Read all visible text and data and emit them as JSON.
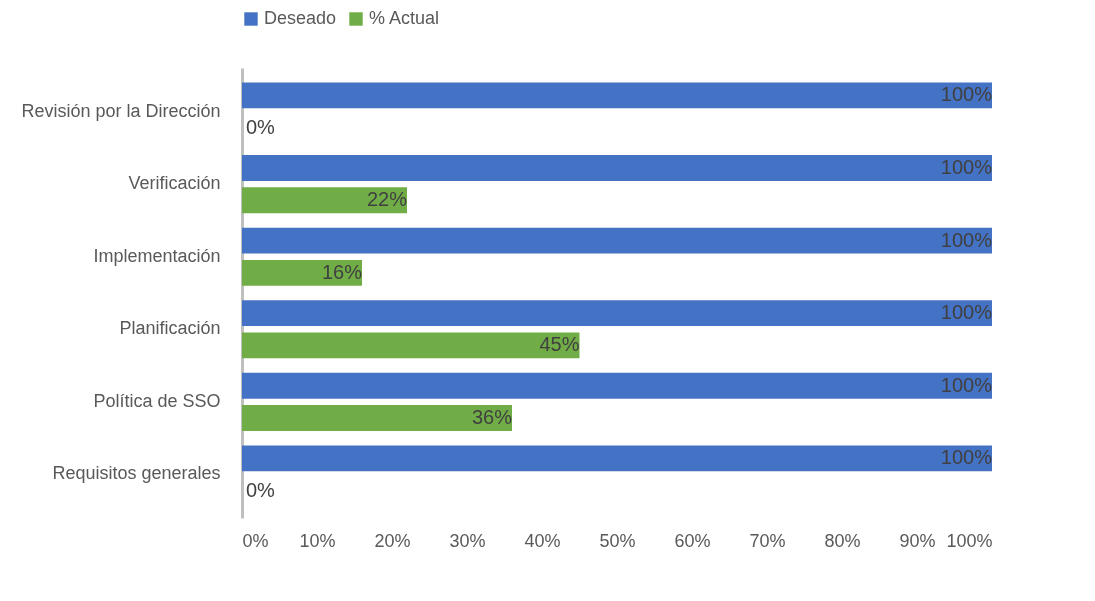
{
  "chart_data": {
    "type": "bar",
    "orientation": "horizontal",
    "legend": "top",
    "grid": false,
    "categories": [
      "Revisión por la Dirección",
      "Verificación",
      "Implementación",
      "Planificación",
      "Política de SSO",
      "Requisitos generales"
    ],
    "series": [
      {
        "name": "Deseado",
        "color": "#4472c4",
        "values": [
          100,
          100,
          100,
          100,
          100,
          100
        ],
        "value_labels": [
          "100%",
          "100%",
          "100%",
          "100%",
          "100%",
          "100%"
        ]
      },
      {
        "name": "% Actual",
        "color": "#70ad47",
        "values": [
          0,
          22,
          16,
          45,
          36,
          0
        ],
        "value_labels": [
          "0%",
          "22%",
          "16%",
          "45%",
          "36%",
          "0%"
        ]
      }
    ],
    "xlim": [
      0,
      100
    ],
    "xticks": [
      {
        "value": 0,
        "label": "0%"
      },
      {
        "value": 10,
        "label": "10%"
      },
      {
        "value": 20,
        "label": "20%"
      },
      {
        "value": 30,
        "label": "30%"
      },
      {
        "value": 40,
        "label": "40%"
      },
      {
        "value": 50,
        "label": "50%"
      },
      {
        "value": 60,
        "label": "60%"
      },
      {
        "value": 70,
        "label": "70%"
      },
      {
        "value": 80,
        "label": "80%"
      },
      {
        "value": 90,
        "label": "90%"
      },
      {
        "value": 100,
        "label": "100%"
      }
    ]
  }
}
